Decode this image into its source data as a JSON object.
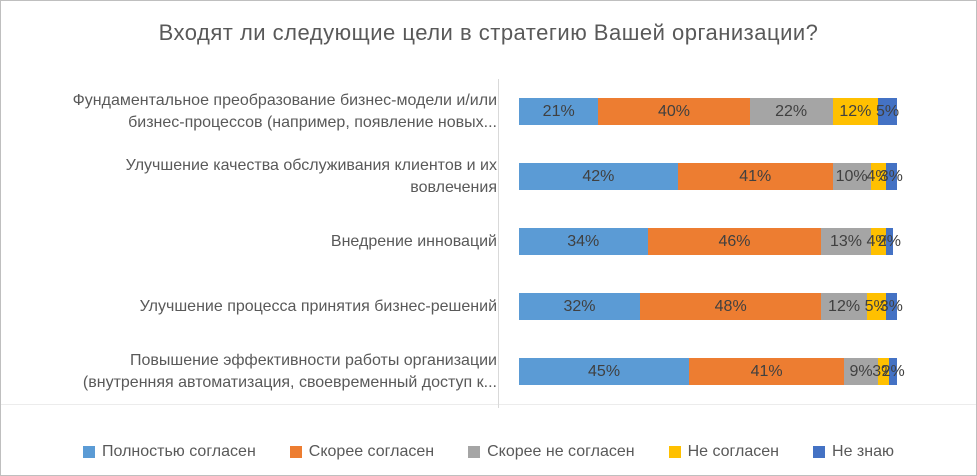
{
  "title": "Входят ли следующие цели в стратегию Вашей организации?",
  "chart_data": {
    "type": "bar",
    "orientation": "horizontal",
    "stacked": true,
    "unit": "%",
    "xlim": [
      0,
      100
    ],
    "grid": false,
    "legend_position": "bottom",
    "data_labels": true,
    "categories": [
      "Фундаментальное преобразование бизнес-модели и/или\nбизнес-процессов (например, появление новых...",
      "Улучшение качества обслуживания клиентов и их\nвовлечения",
      "Внедрение инноваций",
      "Улучшение процесса принятия бизнес-решений",
      "Повышение эффективности работы организации\n(внутренняя автоматизация, своевременный доступ к..."
    ],
    "series": [
      {
        "name": "Полностью согласен",
        "color": "#5B9BD5",
        "values": [
          21,
          42,
          34,
          32,
          45
        ]
      },
      {
        "name": "Скорее согласен",
        "color": "#ED7D31",
        "values": [
          40,
          41,
          46,
          48,
          41
        ]
      },
      {
        "name": "Скорее не согласен",
        "color": "#A5A5A5",
        "values": [
          22,
          10,
          13,
          12,
          9
        ]
      },
      {
        "name": "Не согласен",
        "color": "#FFC000",
        "values": [
          12,
          4,
          4,
          5,
          3
        ]
      },
      {
        "name": "Не знаю",
        "color": "#4472C4",
        "values": [
          5,
          3,
          2,
          3,
          2
        ]
      }
    ]
  },
  "colors": {
    "title_text": "#595959",
    "category_text": "#595959",
    "data_label_text": "#404040",
    "axis_line": "#D9D9D9",
    "frame_border": "#BFBFBF",
    "background": "#FFFFFF"
  }
}
